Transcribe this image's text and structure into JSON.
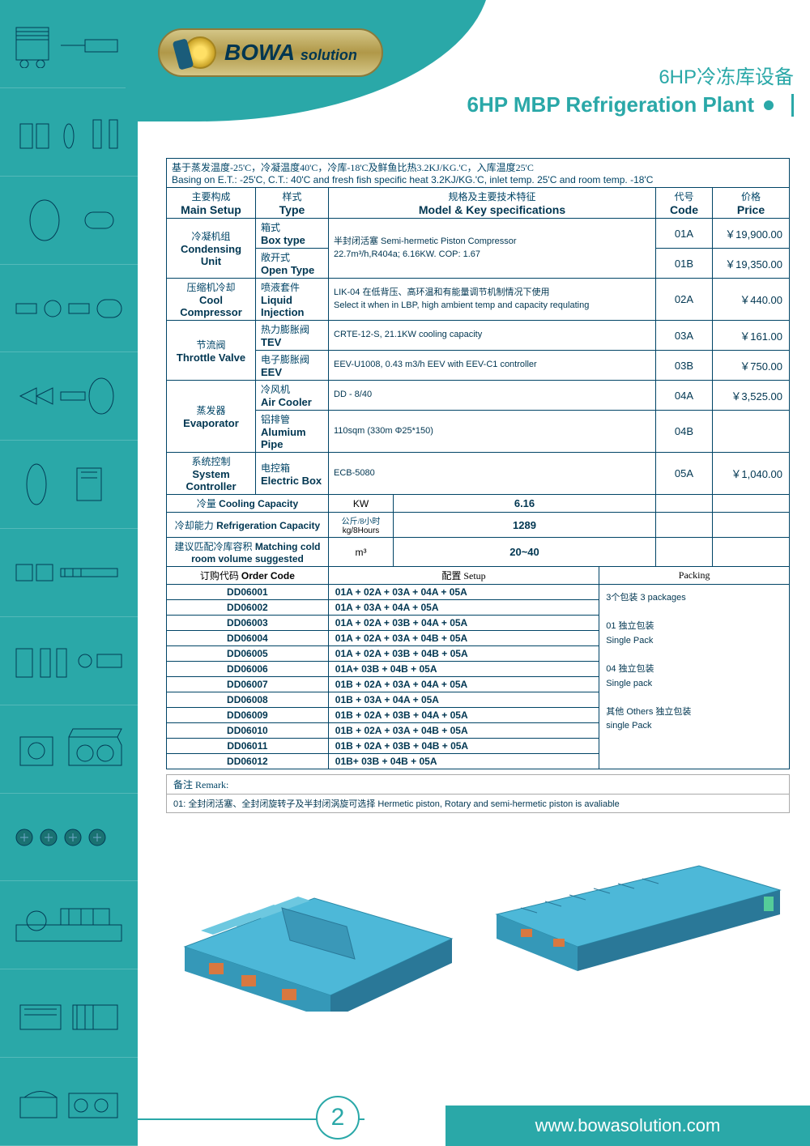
{
  "brand": {
    "name": "BOWA",
    "suffix": "solution"
  },
  "title": {
    "cn": "6HP冷冻库设备",
    "en": "6HP MBP Refrigeration Plant"
  },
  "intro": {
    "cn": "基于蒸发温度-25'C，冷凝温度40'C，冷库-18'C及鲜鱼比热3.2KJ/KG.'C，入库温度25'C",
    "en": "Basing on E.T.: -25'C, C.T.: 40'C and fresh fish specific heat 3.2KJ/KG.'C, inlet temp. 25'C and room temp. -18'C"
  },
  "headers": {
    "main_setup_cn": "主要构成",
    "main_setup_en": "Main Setup",
    "type_cn": "样式",
    "type_en": "Type",
    "model_cn": "规格及主要技术特征",
    "model_en": "Model & Key specifications",
    "code_cn": "代号",
    "code_en": "Code",
    "price_cn": "价格",
    "price_en": "Price"
  },
  "rows": [
    {
      "setup_cn": "冷凝机组",
      "setup_en": "Condensing Unit",
      "types": [
        {
          "cn": "箱式",
          "en": "Box type",
          "code": "01A",
          "price": "￥19,900.00"
        },
        {
          "cn": "敞开式",
          "en": "Open Type",
          "code": "01B",
          "price": "￥19,350.00"
        }
      ],
      "spec": "半封闭活塞 Semi-hermetic Piston Compressor\n22.7m³/h,R404a; 6.16KW. COP: 1.67",
      "spec_rowspan": 2
    },
    {
      "setup_cn": "压缩机冷却",
      "setup_en": "Cool Compressor",
      "types": [
        {
          "cn": "喷液套件",
          "en": "Liquid Injection",
          "code": "02A",
          "price": "￥440.00"
        }
      ],
      "spec": "LIK-04 在低背压、高环温和有能量调节机制情况下使用\nSelect it when in LBP, high ambient temp and capacity requlating"
    },
    {
      "setup_cn": "节流阀",
      "setup_en": "Throttle Valve",
      "types": [
        {
          "cn": "热力膨胀阀",
          "en": "TEV",
          "code": "03A",
          "price": "￥161.00",
          "spec": "CRTE-12-S, 21.1KW cooling capacity"
        },
        {
          "cn": "电子膨胀阀",
          "en": "EEV",
          "code": "03B",
          "price": "￥750.00",
          "spec": "EEV-U1008, 0.43 m3/h EEV with EEV-C1 controller"
        }
      ]
    },
    {
      "setup_cn": "蒸发器",
      "setup_en": "Evaporator",
      "types": [
        {
          "cn": "冷风机",
          "en": "Air Cooler",
          "code": "04A",
          "price": "￥3,525.00",
          "spec": "DD - 8/40"
        },
        {
          "cn": "铝排管",
          "en": "Alumium Pipe",
          "code": "04B",
          "price": "",
          "spec": "110sqm (330m Φ25*150)"
        }
      ]
    },
    {
      "setup_cn": "系统控制",
      "setup_en": "System Controller",
      "types": [
        {
          "cn": "电控箱",
          "en": "Electric Box",
          "code": "05A",
          "price": "￥1,040.00",
          "spec": "ECB-5080"
        }
      ]
    }
  ],
  "summary": [
    {
      "label_cn": "冷量",
      "label_en": "Cooling Capacity",
      "unit": "KW",
      "value": "6.16"
    },
    {
      "label_cn": "冷却能力",
      "label_en": "Refrigeration Capacity",
      "unit_cn": "公斤/8小时",
      "unit_en": "kg/8Hours",
      "value": "1289"
    },
    {
      "label_cn": "建议匹配冷库容积",
      "label_en": "Matching cold room volume suggested",
      "unit": "m³",
      "value": "20~40"
    }
  ],
  "order_hdr": {
    "code_cn": "订购代码",
    "code_en": "Order Code",
    "setup_cn": "配置",
    "setup_en": "Setup",
    "packing": "Packing"
  },
  "orders": [
    {
      "code": "DD06001",
      "setup": "01A + 02A + 03A + 04A + 05A"
    },
    {
      "code": "DD06002",
      "setup": "01A + 03A + 04A + 05A"
    },
    {
      "code": "DD06003",
      "setup": "01A + 02A + 03B + 04A + 05A"
    },
    {
      "code": "DD06004",
      "setup": "01A + 02A + 03A + 04B + 05A"
    },
    {
      "code": "DD06005",
      "setup": "01A + 02A + 03B + 04B + 05A"
    },
    {
      "code": "DD06006",
      "setup": "01A+ 03B + 04B + 05A"
    },
    {
      "code": "DD06007",
      "setup": "01B + 02A + 03A + 04A + 05A"
    },
    {
      "code": "DD06008",
      "setup": "01B + 03A + 04A + 05A"
    },
    {
      "code": "DD06009",
      "setup": "01B + 02A + 03B + 04A + 05A"
    },
    {
      "code": "DD06010",
      "setup": "01B + 02A + 03A + 04B + 05A"
    },
    {
      "code": "DD06011",
      "setup": "01B + 02A + 03B + 04B + 05A"
    },
    {
      "code": "DD06012",
      "setup": "01B+ 03B + 04B + 05A"
    }
  ],
  "packing": "3个包装 3 packages\n\n01 独立包装\n  Single Pack\n\n04 独立包装\n  Single pack\n\n其他 Others 独立包装\n          single Pack",
  "remark": {
    "hdr": "备注 Remark:",
    "body": "01: 全封闭活塞、全封闭旋转子及半封闭涡旋可选择 Hermetic piston, Rotary and semi-hermetic piston is avaliable"
  },
  "footer": {
    "url": "www.bowasolution.com",
    "page": "2"
  },
  "colors": {
    "teal": "#2aa8a8",
    "navy": "#003651",
    "border": "#004466"
  }
}
